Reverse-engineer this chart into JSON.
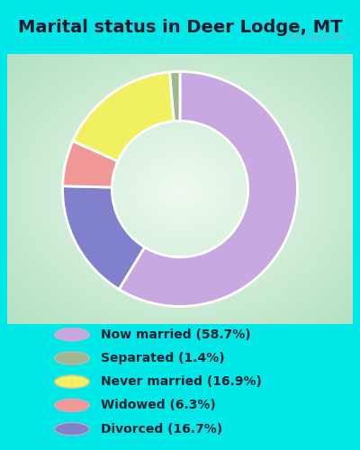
{
  "title": "Marital status in Deer Lodge, MT",
  "title_color": "#1a1a2e",
  "title_fontsize": 14,
  "bg_cyan": "#00e8e8",
  "bg_chart_colors": [
    "#d4ede0",
    "#e8f5e8",
    "#f0faf0",
    "#ffffff"
  ],
  "watermark": "City-Data.com",
  "slice_order": [
    {
      "label": "Now married",
      "value": 58.7,
      "color": "#c8a8e0"
    },
    {
      "label": "Divorced",
      "value": 16.7,
      "color": "#8080cc"
    },
    {
      "label": "Widowed",
      "value": 6.3,
      "color": "#f09898"
    },
    {
      "label": "Never married",
      "value": 16.9,
      "color": "#f0f060"
    },
    {
      "label": "Separated",
      "value": 1.4,
      "color": "#a0b890"
    }
  ],
  "legend_items": [
    {
      "label": "Now married (58.7%)",
      "color": "#c8a8e0"
    },
    {
      "label": "Separated (1.4%)",
      "color": "#a0b890"
    },
    {
      "label": "Never married (16.9%)",
      "color": "#f0f060"
    },
    {
      "label": "Widowed (6.3%)",
      "color": "#f09898"
    },
    {
      "label": "Divorced (16.7%)",
      "color": "#8080cc"
    }
  ],
  "donut_width": 0.42
}
